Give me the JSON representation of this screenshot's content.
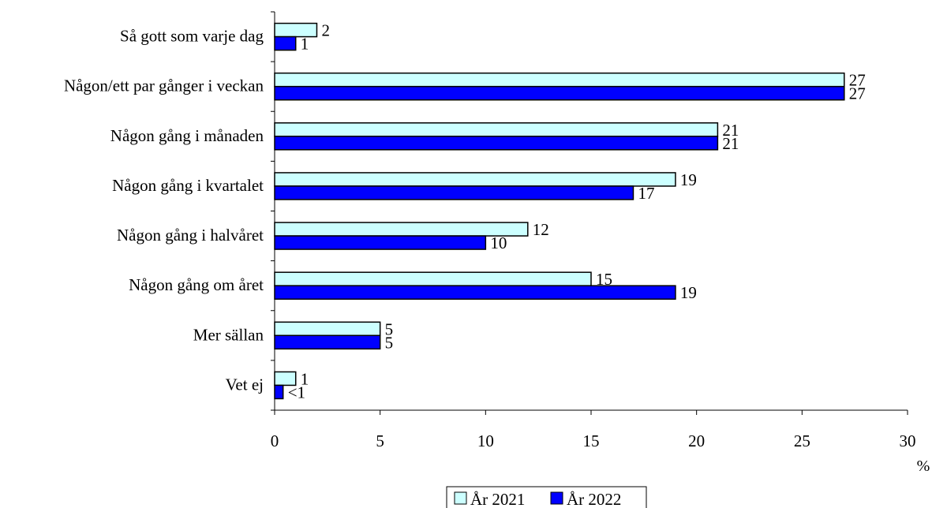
{
  "chart_data": {
    "type": "bar",
    "orientation": "horizontal",
    "categories": [
      "Så gott som varje dag",
      "Någon/ett par gånger i veckan",
      "Någon gång i månaden",
      "Någon gång i kvartalet",
      "Någon gång i halvåret",
      "Någon gång om året",
      "Mer sällan",
      "Vet ej"
    ],
    "series": [
      {
        "name": "År 2021",
        "color": "#ccffff",
        "values": [
          2,
          27,
          21,
          19,
          12,
          15,
          5,
          1
        ],
        "labels": [
          "2",
          "27",
          "21",
          "19",
          "12",
          "15",
          "5",
          "1"
        ]
      },
      {
        "name": "År 2022",
        "color": "#0000ff",
        "values": [
          1,
          27,
          21,
          17,
          10,
          19,
          5,
          0.4
        ],
        "labels": [
          "1",
          "27",
          "21",
          "17",
          "10",
          "19",
          "5",
          "<1"
        ]
      }
    ],
    "xlim": [
      0,
      30
    ],
    "xticks": [
      "0",
      "5",
      "10",
      "15",
      "20",
      "25",
      "30"
    ],
    "xlabel": "%",
    "grid": false,
    "legend_position": "bottom-center"
  }
}
